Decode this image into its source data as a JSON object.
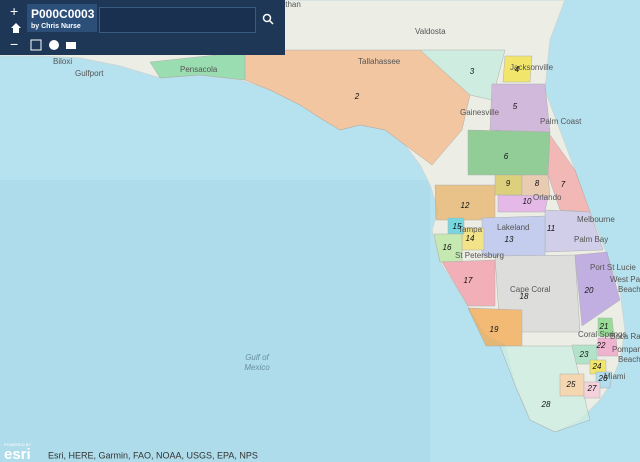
{
  "header": {
    "title": "P000C0003",
    "subtitle": "by Chris Nurse"
  },
  "controls": {
    "zoom_in": "+",
    "zoom_out": "−"
  },
  "map": {
    "places": [
      "Dothan",
      "Valdosta",
      "Jacksonville",
      "Tallahassee",
      "Pensacola",
      "Biloxi",
      "Gulfport",
      "Gainesville",
      "Palm Coast",
      "Orlando",
      "Melbourne",
      "Lakeland",
      "Tampa",
      "Palm Bay",
      "St Petersburg",
      "Port St Lucie",
      "West Palm",
      "Beach",
      "Cape Coral",
      "Boca Raton",
      "Coral Springs",
      "Pompano",
      "Beach",
      "Miami"
    ],
    "districts": [
      2,
      3,
      4,
      5,
      6,
      7,
      8,
      9,
      10,
      11,
      12,
      13,
      14,
      15,
      16,
      17,
      18,
      19,
      20,
      21,
      22,
      23,
      24,
      25,
      26,
      27,
      28
    ],
    "water_labels": [
      "Gulf of",
      "Mexico"
    ]
  },
  "footer": {
    "logo_small": "POWERED BY",
    "logo": "esri",
    "attribution": "Esri, HERE, Garmin, FAO, NOAA, USGS, EPA, NPS"
  }
}
